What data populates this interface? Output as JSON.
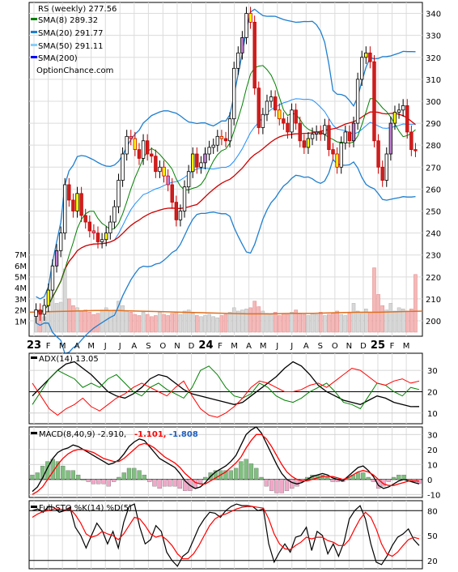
{
  "chart_data": [
    {
      "type": "line",
      "title": "RS (weekly) 277.56",
      "legend": [
        {
          "text": "SMA(8) 289.32",
          "color": "#008000"
        },
        {
          "text": "SMA(20) 291.77",
          "color": "#1e7fd0"
        },
        {
          "text": "SMA(50) 291.11",
          "color": "#87cefa"
        },
        {
          "text": "SMA(200)",
          "color": "#0000ff"
        }
      ],
      "watermark": "OptionChance.com",
      "price_ticks": [
        200,
        210,
        220,
        230,
        240,
        250,
        260,
        270,
        280,
        290,
        300,
        310,
        320,
        330,
        340
      ],
      "ylim": [
        193,
        345
      ],
      "volume_ticks": [
        "1M",
        "2M",
        "3M",
        "4M",
        "5M",
        "6M",
        "7M"
      ],
      "x_labels": [
        {
          "text": "23",
          "w": 0,
          "major": true
        },
        {
          "text": "F",
          "w": 4.3
        },
        {
          "text": "M",
          "w": 8.6
        },
        {
          "text": "A",
          "w": 13
        },
        {
          "text": "M",
          "w": 17.3
        },
        {
          "text": "J",
          "w": 21.6
        },
        {
          "text": "J",
          "w": 26
        },
        {
          "text": "A",
          "w": 30.3
        },
        {
          "text": "S",
          "w": 34.6
        },
        {
          "text": "O",
          "w": 39
        },
        {
          "text": "N",
          "w": 43.3
        },
        {
          "text": "D",
          "w": 47.6
        },
        {
          "text": "24",
          "w": 52,
          "major": true
        },
        {
          "text": "F",
          "w": 56.3
        },
        {
          "text": "M",
          "w": 60.6
        },
        {
          "text": "A",
          "w": 65
        },
        {
          "text": "M",
          "w": 69.3
        },
        {
          "text": "J",
          "w": 73.6
        },
        {
          "text": "J",
          "w": 78
        },
        {
          "text": "A",
          "w": 82.3
        },
        {
          "text": "S",
          "w": 86.6
        },
        {
          "text": "O",
          "w": 91
        },
        {
          "text": "N",
          "w": 95.3
        },
        {
          "text": "D",
          "w": 99.6
        },
        {
          "text": "25",
          "w": 104,
          "major": true
        },
        {
          "text": "F",
          "w": 108.3
        },
        {
          "text": "M",
          "w": 112.6
        }
      ],
      "closes": [
        205,
        203,
        207,
        214,
        225,
        232,
        240,
        262,
        255,
        250,
        258,
        248,
        245,
        241,
        240,
        236,
        237,
        240,
        245,
        252,
        264,
        276,
        284,
        283,
        278,
        274,
        282,
        276,
        275,
        268,
        270,
        266,
        262,
        254,
        246,
        250,
        261,
        268,
        276,
        270,
        272,
        276,
        279,
        280,
        284,
        283,
        282,
        292,
        315,
        322,
        329,
        340,
        336,
        306,
        288,
        294,
        300,
        302,
        296,
        292,
        290,
        286,
        296,
        290,
        282,
        279,
        283,
        285,
        286,
        285,
        289,
        278,
        276,
        270,
        281,
        286,
        282,
        290,
        310,
        320,
        322,
        318,
        282,
        270,
        264,
        276,
        290,
        295,
        296,
        298,
        286,
        278,
        277.56
      ],
      "volume_m": [
        1.5,
        1.8,
        1.4,
        1.9,
        3.2,
        2.6,
        2.7,
        5.7,
        3.0,
        2.4,
        2.2,
        1.9,
        2.0,
        1.8,
        1.6,
        1.7,
        2.0,
        2.2,
        1.9,
        2.0,
        2.8,
        2.4,
        1.9,
        1.8,
        1.6,
        1.5,
        1.8,
        1.6,
        1.4,
        1.5,
        1.8,
        1.6,
        1.5,
        1.7,
        1.8,
        1.6,
        1.9,
        2.0,
        1.7,
        1.5,
        1.4,
        1.5,
        1.6,
        1.4,
        1.3,
        1.5,
        1.6,
        1.8,
        2.2,
        1.9,
        2.0,
        2.1,
        2.2,
        2.8,
        2.3,
        1.9,
        1.7,
        1.6,
        1.8,
        1.5,
        1.7,
        1.6,
        1.8,
        2.0,
        1.7,
        1.6,
        1.5,
        1.7,
        1.6,
        1.8,
        1.5,
        1.6,
        1.7,
        1.9,
        1.6,
        1.5,
        1.7,
        2.6,
        1.9,
        1.7,
        2.1,
        1.8,
        5.8,
        3.4,
        2.4,
        2.0,
        2.6,
        1.9,
        2.2,
        2.1,
        1.9,
        2.1,
        5.2
      ],
      "volume_avg_m": [
        1.8,
        1.85,
        1.9,
        1.95,
        1.95,
        1.9,
        1.85,
        1.8,
        1.75,
        1.7,
        1.65,
        1.65,
        1.7,
        1.7,
        1.75,
        1.8,
        1.8,
        1.85,
        1.9
      ]
    },
    {
      "type": "line",
      "title": "ADX(14) 13.05",
      "ticks": [
        10,
        20,
        30
      ],
      "ylim": [
        5,
        38
      ],
      "series": [
        {
          "color": "#000000",
          "values": [
            18,
            22,
            26,
            30,
            33,
            34,
            31,
            28,
            24,
            20,
            18,
            17,
            19,
            22,
            26,
            28,
            27,
            24,
            21,
            19,
            18,
            17,
            16,
            15,
            14,
            15,
            18,
            21,
            24,
            27,
            31,
            34,
            32,
            28,
            23,
            20,
            18,
            16,
            15,
            14,
            16,
            18,
            17,
            15,
            14,
            13,
            13.05
          ]
        },
        {
          "color": "#008000",
          "values": [
            14,
            20,
            26,
            30,
            28,
            26,
            22,
            24,
            22,
            26,
            28,
            24,
            20,
            18,
            22,
            24,
            21,
            19,
            17,
            22,
            30,
            32,
            28,
            22,
            18,
            17,
            19,
            24,
            22,
            18,
            16,
            15,
            17,
            20,
            22,
            24,
            20,
            15,
            14,
            12,
            18,
            24,
            23,
            20,
            18,
            22,
            21
          ]
        },
        {
          "color": "#ff0000",
          "values": [
            24,
            18,
            12,
            9,
            12,
            14,
            17,
            13,
            11,
            14,
            17,
            19,
            22,
            24,
            22,
            20,
            18,
            22,
            25,
            18,
            12,
            9,
            8,
            10,
            13,
            17,
            22,
            25,
            24,
            22,
            20,
            20,
            21,
            23,
            24,
            22,
            25,
            28,
            31,
            30,
            27,
            24,
            23,
            25,
            26,
            24,
            25
          ]
        }
      ]
    },
    {
      "type": "line",
      "title": "MACD(8,40,9) -2.910,",
      "signal_label": "-1.101,",
      "hist_label": "-1.808",
      "ticks": [
        -10,
        0,
        10,
        20,
        30
      ],
      "ylim": [
        -12,
        35
      ],
      "series": [
        {
          "color": "#000000",
          "values": [
            -8,
            -5,
            1,
            8,
            14,
            18,
            20,
            21,
            23,
            22,
            20,
            18,
            16,
            14,
            12,
            10,
            11,
            13,
            17,
            22,
            25,
            27,
            26,
            22,
            18,
            14,
            12,
            10,
            8,
            4,
            -1,
            -4,
            -6,
            -5,
            -2,
            2,
            5,
            7,
            9,
            12,
            16,
            23,
            30,
            33,
            35,
            31,
            24,
            17,
            10,
            4,
            0,
            -2,
            -3,
            -2,
            0,
            2,
            3,
            4,
            3,
            1,
            0,
            -1,
            2,
            5,
            8,
            9,
            6,
            2,
            -4,
            -6,
            -5,
            -3,
            -1,
            0,
            -1,
            -2,
            -2.91
          ]
        },
        {
          "color": "#ff0000",
          "values": [
            -10,
            -8,
            -5,
            0,
            5,
            10,
            14,
            17,
            19,
            20,
            20,
            19,
            18,
            16,
            14,
            13,
            12,
            12,
            14,
            17,
            20,
            23,
            24,
            23,
            21,
            18,
            15,
            13,
            11,
            8,
            4,
            1,
            -2,
            -3,
            -3,
            -1,
            1,
            3,
            5,
            8,
            11,
            15,
            21,
            26,
            30,
            30,
            27,
            22,
            16,
            10,
            5,
            2,
            0,
            -1,
            -1,
            0,
            1,
            2,
            2,
            2,
            1,
            0,
            1,
            3,
            5,
            6,
            5,
            3,
            0,
            -3,
            -4,
            -4,
            -3,
            -2,
            -1,
            -1,
            -1.1
          ]
        }
      ]
    },
    {
      "type": "line",
      "title": "Full STO %K(14) %D(5)",
      "ticks": [
        20,
        50,
        80
      ],
      "ylim": [
        10,
        92
      ],
      "series": [
        {
          "color": "#000000",
          "values": [
            80,
            82,
            78,
            85,
            84,
            78,
            80,
            84,
            60,
            50,
            35,
            50,
            65,
            56,
            40,
            55,
            35,
            66,
            85,
            88,
            60,
            40,
            45,
            62,
            55,
            30,
            20,
            13,
            25,
            30,
            45,
            60,
            70,
            78,
            77,
            72,
            80,
            85,
            88,
            86,
            86,
            85,
            80,
            82,
            40,
            18,
            30,
            40,
            30,
            48,
            50,
            60,
            32,
            55,
            50,
            28,
            40,
            25,
            42,
            70,
            80,
            86,
            70,
            40,
            18,
            15,
            25,
            38,
            48,
            52,
            58,
            45,
            38
          ]
        },
        {
          "color": "#ff0000",
          "values": [
            72,
            76,
            79,
            80,
            82,
            82,
            81,
            82,
            75,
            65,
            52,
            48,
            50,
            55,
            52,
            50,
            45,
            52,
            62,
            72,
            70,
            62,
            52,
            48,
            50,
            45,
            38,
            28,
            22,
            22,
            28,
            38,
            50,
            62,
            70,
            74,
            76,
            79,
            82,
            84,
            85,
            85,
            84,
            83,
            70,
            52,
            40,
            34,
            33,
            38,
            42,
            48,
            46,
            48,
            48,
            44,
            42,
            38,
            38,
            45,
            58,
            70,
            78,
            72,
            58,
            40,
            28,
            25,
            30,
            38,
            45,
            48,
            46
          ]
        }
      ]
    }
  ]
}
